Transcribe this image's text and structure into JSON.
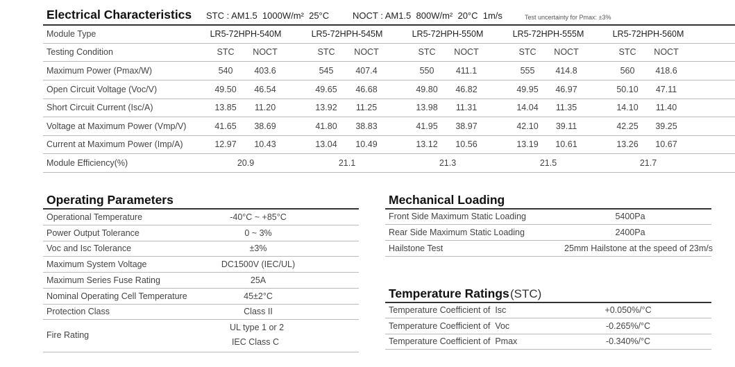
{
  "electrical": {
    "title": "Electrical Characteristics",
    "stc_condition": "STC : AM1.5  1000W/m²  25°C",
    "noct_condition": "NOCT : AM1.5  800W/m²  20°C  1m/s",
    "uncertainty_note": "Test uncertainty for Pmax: ±3%",
    "module_type_label": "Module Type",
    "models": [
      "LR5-72HPH-540M",
      "LR5-72HPH-545M",
      "LR5-72HPH-550M",
      "LR5-72HPH-555M",
      "LR5-72HPH-560M"
    ],
    "testing_condition_label": "Testing Condition",
    "stc_label": "STC",
    "noct_label": "NOCT",
    "rows": [
      {
        "label": "Maximum Power (Pmax/W)",
        "values": [
          "540",
          "403.6",
          "545",
          "407.4",
          "550",
          "411.1",
          "555",
          "414.8",
          "560",
          "418.6"
        ]
      },
      {
        "label": "Open Circuit Voltage (Voc/V)",
        "values": [
          "49.50",
          "46.54",
          "49.65",
          "46.68",
          "49.80",
          "46.82",
          "49.95",
          "46.97",
          "50.10",
          "47.11"
        ]
      },
      {
        "label": "Short Circuit Current (Isc/A)",
        "values": [
          "13.85",
          "11.20",
          "13.92",
          "11.25",
          "13.98",
          "11.31",
          "14.04",
          "11.35",
          "14.10",
          "11.40"
        ]
      },
      {
        "label": "Voltage at Maximum Power (Vmp/V)",
        "values": [
          "41.65",
          "38.69",
          "41.80",
          "38.83",
          "41.95",
          "38.97",
          "42.10",
          "39.11",
          "42.25",
          "39.25"
        ]
      },
      {
        "label": "Current at Maximum Power (Imp/A)",
        "values": [
          "12.97",
          "10.43",
          "13.04",
          "10.49",
          "13.12",
          "10.56",
          "13.19",
          "10.61",
          "13.26",
          "10.67"
        ]
      }
    ],
    "efficiency_label": "Module Efficiency(%)",
    "efficiency": [
      "20.9",
      "21.1",
      "21.3",
      "21.5",
      "21.7"
    ]
  },
  "operating": {
    "title": "Operating Parameters",
    "rows": [
      {
        "label": "Operational Temperature",
        "value": "-40°C ~ +85°C"
      },
      {
        "label": "Power Output Tolerance",
        "value": "0 ~ 3%"
      },
      {
        "label": "Voc and Isc Tolerance",
        "value": "±3%"
      },
      {
        "label": "Maximum System Voltage",
        "value": "DC1500V (IEC/UL)"
      },
      {
        "label": "Maximum Series Fuse Rating",
        "value": "25A"
      },
      {
        "label": "Nominal Operating Cell Temperature",
        "value": "45±2°C"
      },
      {
        "label": "Protection Class",
        "value": "Class II"
      }
    ],
    "fire_label": "Fire Rating",
    "fire_values": [
      "UL type 1 or 2",
      "IEC Class C"
    ]
  },
  "mechanical": {
    "title": "Mechanical Loading",
    "rows": [
      {
        "label": "Front Side Maximum Static Loading",
        "value": "5400Pa"
      },
      {
        "label": "Rear Side Maximum Static Loading",
        "value": "2400Pa"
      },
      {
        "label": "Hailstone Test",
        "value": "25mm Hailstone at the speed of 23m/s"
      }
    ]
  },
  "temperature": {
    "title": "Temperature Ratings",
    "title_suffix": "(STC)",
    "rows": [
      {
        "label": "Temperature Coefficient of  Isc",
        "value": "+0.050%/°C"
      },
      {
        "label": "Temperature Coefficient of  Voc",
        "value": "-0.265%/°C"
      },
      {
        "label": "Temperature Coefficient of  Pmax",
        "value": "-0.340%/°C"
      }
    ]
  }
}
